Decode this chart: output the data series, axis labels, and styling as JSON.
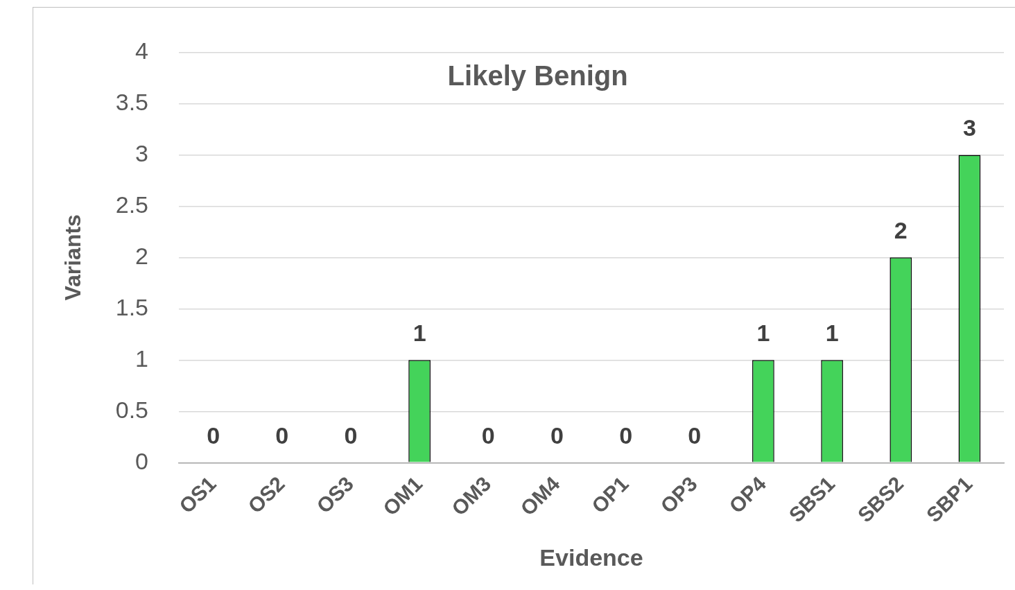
{
  "chart_data": {
    "type": "bar",
    "title": "Likely Benign",
    "xlabel": "Evidence",
    "ylabel": "Variants",
    "categories": [
      "OS1",
      "OS2",
      "OS3",
      "OM1",
      "OM3",
      "OM4",
      "OP1",
      "OP3",
      "OP4",
      "SBS1",
      "SBS2",
      "SBP1"
    ],
    "values": [
      0,
      0,
      0,
      1,
      0,
      0,
      0,
      0,
      1,
      1,
      2,
      3
    ],
    "color": "#44d35a",
    "ylim": [
      0,
      4
    ],
    "yticks": [
      0,
      0.5,
      1,
      1.5,
      2,
      2.5,
      3,
      3.5,
      4
    ],
    "grid": "y",
    "data_labels": true,
    "legend": false
  }
}
